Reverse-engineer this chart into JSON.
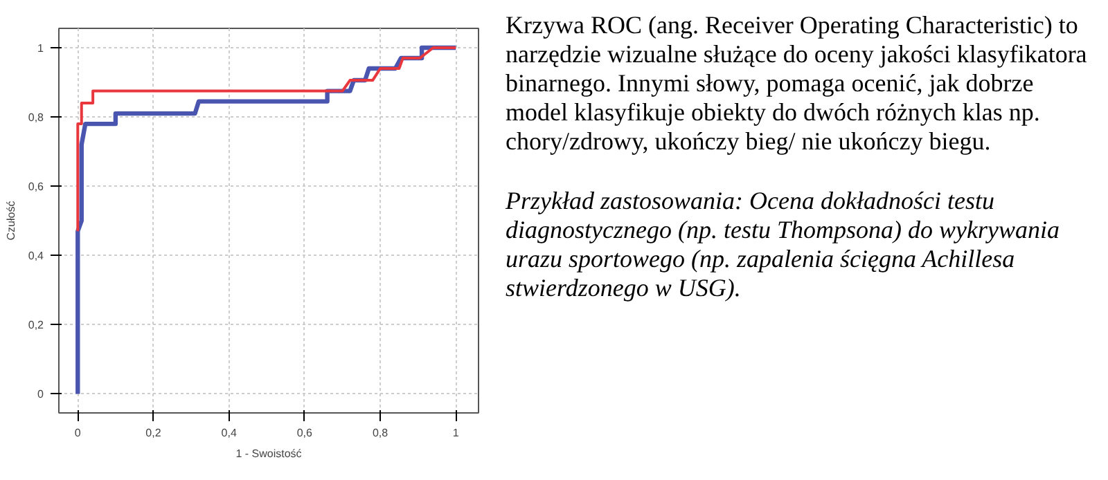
{
  "chart_data": {
    "type": "line",
    "xlabel": "1 - Swoistość",
    "ylabel": "Czułość",
    "xlim": [
      -0.05,
      1.06
    ],
    "ylim": [
      -0.055,
      1.056
    ],
    "xticks": [
      {
        "value": 0,
        "label": "0"
      },
      {
        "value": 0.2,
        "label": "0,2"
      },
      {
        "value": 0.4,
        "label": "0,4"
      },
      {
        "value": 0.6,
        "label": "0,6"
      },
      {
        "value": 0.8,
        "label": "0,8"
      },
      {
        "value": 1,
        "label": "1"
      }
    ],
    "yticks": [
      {
        "value": 0,
        "label": "0"
      },
      {
        "value": 0.2,
        "label": "0,2"
      },
      {
        "value": 0.4,
        "label": "0,4"
      },
      {
        "value": 0.6,
        "label": "0,6"
      },
      {
        "value": 0.8,
        "label": "0,8"
      },
      {
        "value": 1,
        "label": "1"
      }
    ],
    "grid": true,
    "line_style": "solid",
    "series": [
      {
        "color": "#4a55b0",
        "x": [
          0,
          0,
          0.01,
          0.01,
          0.02,
          0.1,
          0.1,
          0.31,
          0.32,
          0.66,
          0.66,
          0.72,
          0.73,
          0.76,
          0.77,
          0.84,
          0.855,
          0.91,
          0.91,
          1
        ],
        "values": [
          0,
          0.47,
          0.5,
          0.72,
          0.78,
          0.78,
          0.81,
          0.81,
          0.845,
          0.845,
          0.875,
          0.875,
          0.906,
          0.906,
          0.94,
          0.94,
          0.97,
          0.97,
          1,
          1
        ]
      },
      {
        "color": "#e8383d",
        "x": [
          0,
          0,
          0.01,
          0.01,
          0.04,
          0.04,
          0.7,
          0.72,
          0.78,
          0.8,
          0.85,
          0.86,
          0.905,
          0.94,
          1
        ],
        "values": [
          0.47,
          0.78,
          0.78,
          0.84,
          0.84,
          0.875,
          0.875,
          0.906,
          0.906,
          0.94,
          0.94,
          0.97,
          0.97,
          1,
          1
        ]
      }
    ],
    "annotations": [
      "Krzywa ROC (ang. Receiver Operating Characteristic) to narzędzie wizualne służące do oceny jakości klasyfikatora binarnego. Innymi słowy, pomaga ocenić, jak dobrze model klasyfikuje obiekty do dwóch różnych klas np. chory/zdrowy, ukończy bieg/ nie ukończy biegu.",
      "Przykład zastosowania: Ocena dokładności testu diagnostycznego (np. testu Thompsona) do wykrywania urazu sportowego (np. zapalenia ścięgna Achillesa stwierdzonego w USG)."
    ]
  }
}
